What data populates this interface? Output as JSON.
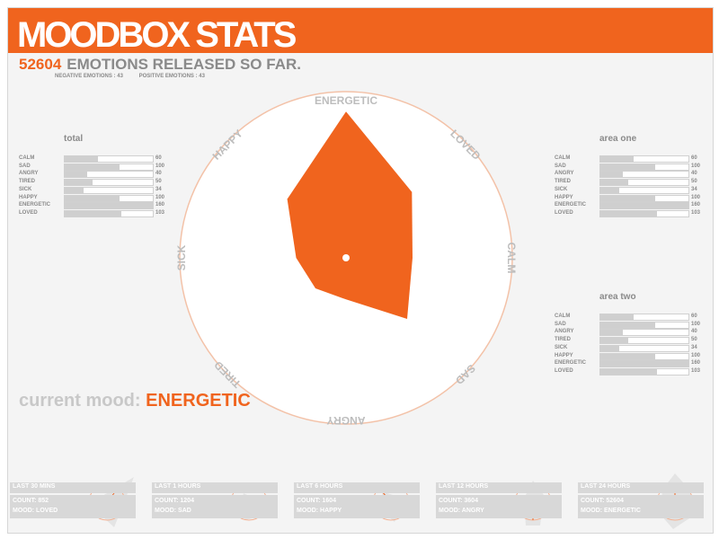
{
  "header": {
    "title": "MOODBOX STATS",
    "total_count": "52604",
    "total_text": "EMOTIONS RELEASED SO FAR.",
    "negative": "NEGATIVE EMOTIONS : 43",
    "positive": "POSITIVE EMOTIONS : 43"
  },
  "panels": {
    "total": {
      "title": "total",
      "rows": [
        {
          "label": "CALM",
          "value": "60"
        },
        {
          "label": "SAD",
          "value": "100"
        },
        {
          "label": "ANGRY",
          "value": "40"
        },
        {
          "label": "TIRED",
          "value": "50"
        },
        {
          "label": "SICK",
          "value": "34"
        },
        {
          "label": "HAPPY",
          "value": "100"
        },
        {
          "label": "ENERGETIC",
          "value": "160"
        },
        {
          "label": "LOVED",
          "value": "103"
        }
      ]
    },
    "area_one": {
      "title": "area one",
      "rows": [
        {
          "label": "CALM",
          "value": "60"
        },
        {
          "label": "SAD",
          "value": "100"
        },
        {
          "label": "ANGRY",
          "value": "40"
        },
        {
          "label": "TIRED",
          "value": "50"
        },
        {
          "label": "SICK",
          "value": "34"
        },
        {
          "label": "HAPPY",
          "value": "100"
        },
        {
          "label": "ENERGETIC",
          "value": "160"
        },
        {
          "label": "LOVED",
          "value": "103"
        }
      ]
    },
    "area_two": {
      "title": "area two",
      "rows": [
        {
          "label": "CALM",
          "value": "60"
        },
        {
          "label": "SAD",
          "value": "100"
        },
        {
          "label": "ANGRY",
          "value": "40"
        },
        {
          "label": "TIRED",
          "value": "50"
        },
        {
          "label": "SICK",
          "value": "34"
        },
        {
          "label": "HAPPY",
          "value": "100"
        },
        {
          "label": "ENERGETIC",
          "value": "160"
        },
        {
          "label": "LOVED",
          "value": "103"
        }
      ]
    }
  },
  "radar": {
    "labels": {
      "energetic": "ENERGETIC",
      "loved": "LOVED",
      "calm": "CALM",
      "sad": "SAD",
      "angry": "ANGRY",
      "tired": "TIRED",
      "sick": "SICK",
      "happy": "HAPPY"
    },
    "levels": {
      "energetic": 0.88,
      "loved": 0.56,
      "calm": 0.4,
      "sad": 0.52,
      "angry": 0.25,
      "tired": 0.26,
      "sick": 0.3,
      "happy": 0.5
    },
    "accent": "#f0641e"
  },
  "current_mood": {
    "label": "current mood:",
    "value": "ENERGETIC"
  },
  "bottom": [
    {
      "title": "LAST 30 MINS",
      "count": "COUNT: 852",
      "mood": "MOOD: LOVED"
    },
    {
      "title": "LAST 1 HOURS",
      "count": "COUNT: 1204",
      "mood": "MOOD: SAD"
    },
    {
      "title": "LAST 6 HOURS",
      "count": "COUNT: 1604",
      "mood": "MOOD: HAPPY"
    },
    {
      "title": "LAST 12 HOURS",
      "count": "COUNT: 3604",
      "mood": "MOOD: ANGRY"
    },
    {
      "title": "LAST 24 HOURS",
      "count": "COUNT: 52604",
      "mood": "MOOD: ENERGETIC"
    }
  ]
}
